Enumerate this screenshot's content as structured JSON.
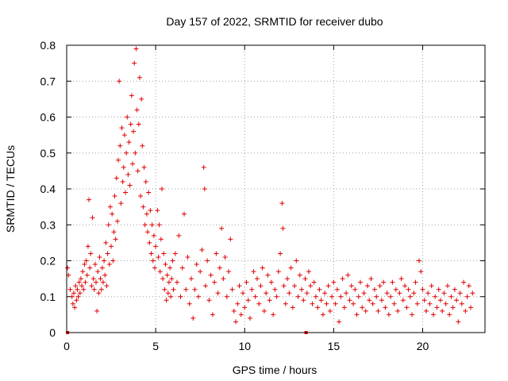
{
  "chart_data": {
    "type": "scatter",
    "title": "Day 157 of 2022, SRMTID for receiver dubo",
    "xlabel": "GPS time / hours",
    "ylabel": "SRMTID / TECUs",
    "xlim": [
      0,
      23.5
    ],
    "ylim": [
      0,
      0.8
    ],
    "xticks": [
      0,
      5,
      10,
      15,
      20
    ],
    "yticks": [
      0,
      0.1,
      0.2,
      0.3,
      0.4,
      0.5,
      0.6,
      0.7,
      0.8
    ],
    "xtick_labels": [
      "0",
      "5",
      "10",
      "15",
      "20"
    ],
    "ytick_labels": [
      "0",
      "0.1",
      "0.2",
      "0.3",
      "0.4",
      "0.5",
      "0.6",
      "0.7",
      "0.8"
    ],
    "grid": true,
    "marker": "+",
    "color": "#e00000",
    "zero_markers_x": [
      0.05,
      13.45
    ],
    "series": [
      {
        "name": "SRMTID",
        "points": [
          [
            0.05,
            0.18
          ],
          [
            0.1,
            0.16
          ],
          [
            0.2,
            0.12
          ],
          [
            0.3,
            0.1
          ],
          [
            0.35,
            0.08
          ],
          [
            0.4,
            0.11
          ],
          [
            0.45,
            0.07
          ],
          [
            0.5,
            0.13
          ],
          [
            0.55,
            0.09
          ],
          [
            0.6,
            0.12
          ],
          [
            0.65,
            0.1
          ],
          [
            0.7,
            0.14
          ],
          [
            0.75,
            0.11
          ],
          [
            0.8,
            0.15
          ],
          [
            0.85,
            0.13
          ],
          [
            0.9,
            0.17
          ],
          [
            0.95,
            0.12
          ],
          [
            1.0,
            0.19
          ],
          [
            1.05,
            0.14
          ],
          [
            1.1,
            0.2
          ],
          [
            1.15,
            0.16
          ],
          [
            1.2,
            0.24
          ],
          [
            1.25,
            0.37
          ],
          [
            1.3,
            0.18
          ],
          [
            1.35,
            0.22
          ],
          [
            1.4,
            0.13
          ],
          [
            1.45,
            0.32
          ],
          [
            1.5,
            0.15
          ],
          [
            1.55,
            0.12
          ],
          [
            1.6,
            0.19
          ],
          [
            1.65,
            0.14
          ],
          [
            1.7,
            0.06
          ],
          [
            1.75,
            0.17
          ],
          [
            1.8,
            0.11
          ],
          [
            1.85,
            0.21
          ],
          [
            1.9,
            0.15
          ],
          [
            1.95,
            0.12
          ],
          [
            2.0,
            0.18
          ],
          [
            2.05,
            0.14
          ],
          [
            2.1,
            0.2
          ],
          [
            2.15,
            0.16
          ],
          [
            2.2,
            0.25
          ],
          [
            2.25,
            0.13
          ],
          [
            2.3,
            0.22
          ],
          [
            2.35,
            0.3
          ],
          [
            2.4,
            0.19
          ],
          [
            2.45,
            0.35
          ],
          [
            2.5,
            0.24
          ],
          [
            2.55,
            0.33
          ],
          [
            2.6,
            0.2
          ],
          [
            2.65,
            0.28
          ],
          [
            2.7,
            0.38
          ],
          [
            2.75,
            0.26
          ],
          [
            2.8,
            0.43
          ],
          [
            2.85,
            0.31
          ],
          [
            2.9,
            0.48
          ],
          [
            2.95,
            0.7
          ],
          [
            3.0,
            0.52
          ],
          [
            3.05,
            0.36
          ],
          [
            3.1,
            0.57
          ],
          [
            3.15,
            0.42
          ],
          [
            3.2,
            0.46
          ],
          [
            3.25,
            0.55
          ],
          [
            3.3,
            0.39
          ],
          [
            3.35,
            0.5
          ],
          [
            3.4,
            0.6
          ],
          [
            3.45,
            0.44
          ],
          [
            3.5,
            0.53
          ],
          [
            3.55,
            0.41
          ],
          [
            3.6,
            0.58
          ],
          [
            3.65,
            0.66
          ],
          [
            3.7,
            0.47
          ],
          [
            3.75,
            0.56
          ],
          [
            3.8,
            0.75
          ],
          [
            3.85,
            0.5
          ],
          [
            3.9,
            0.79
          ],
          [
            3.95,
            0.62
          ],
          [
            4.0,
            0.45
          ],
          [
            4.05,
            0.58
          ],
          [
            4.1,
            0.71
          ],
          [
            4.15,
            0.38
          ],
          [
            4.2,
            0.65
          ],
          [
            4.25,
            0.52
          ],
          [
            4.3,
            0.35
          ],
          [
            4.35,
            0.46
          ],
          [
            4.4,
            0.3
          ],
          [
            4.45,
            0.42
          ],
          [
            4.5,
            0.33
          ],
          [
            4.55,
            0.28
          ],
          [
            4.6,
            0.39
          ],
          [
            4.65,
            0.25
          ],
          [
            4.7,
            0.34
          ],
          [
            4.75,
            0.22
          ],
          [
            4.8,
            0.3
          ],
          [
            4.85,
            0.2
          ],
          [
            4.9,
            0.27
          ],
          [
            4.95,
            0.18
          ],
          [
            5.0,
            0.24
          ],
          [
            5.1,
            0.34
          ],
          [
            5.15,
            0.21
          ],
          [
            5.2,
            0.3
          ],
          [
            5.25,
            0.17
          ],
          [
            5.3,
            0.26
          ],
          [
            5.35,
            0.4
          ],
          [
            5.4,
            0.15
          ],
          [
            5.45,
            0.22
          ],
          [
            5.5,
            0.12
          ],
          [
            5.55,
            0.19
          ],
          [
            5.6,
            0.09
          ],
          [
            5.65,
            0.16
          ],
          [
            5.7,
            0.11
          ],
          [
            5.75,
            0.14
          ],
          [
            5.8,
            0.18
          ],
          [
            5.85,
            0.1
          ],
          [
            5.9,
            0.15
          ],
          [
            5.95,
            0.2
          ],
          [
            6.0,
            0.12
          ],
          [
            6.1,
            0.22
          ],
          [
            6.2,
            0.14
          ],
          [
            6.3,
            0.27
          ],
          [
            6.4,
            0.1
          ],
          [
            6.5,
            0.18
          ],
          [
            6.6,
            0.33
          ],
          [
            6.7,
            0.12
          ],
          [
            6.8,
            0.21
          ],
          [
            6.9,
            0.08
          ],
          [
            7.0,
            0.15
          ],
          [
            7.1,
            0.04
          ],
          [
            7.2,
            0.12
          ],
          [
            7.3,
            0.19
          ],
          [
            7.4,
            0.1
          ],
          [
            7.5,
            0.17
          ],
          [
            7.6,
            0.23
          ],
          [
            7.7,
            0.46
          ],
          [
            7.75,
            0.4
          ],
          [
            7.8,
            0.13
          ],
          [
            7.9,
            0.2
          ],
          [
            8.0,
            0.09
          ],
          [
            8.1,
            0.16
          ],
          [
            8.2,
            0.05
          ],
          [
            8.3,
            0.14
          ],
          [
            8.4,
            0.22
          ],
          [
            8.5,
            0.11
          ],
          [
            8.6,
            0.18
          ],
          [
            8.7,
            0.29
          ],
          [
            8.8,
            0.15
          ],
          [
            8.9,
            0.21
          ],
          [
            9.0,
            0.1
          ],
          [
            9.1,
            0.17
          ],
          [
            9.2,
            0.26
          ],
          [
            9.3,
            0.12
          ],
          [
            9.4,
            0.06
          ],
          [
            9.5,
            0.03
          ],
          [
            9.6,
            0.08
          ],
          [
            9.7,
            0.13
          ],
          [
            9.8,
            0.05
          ],
          [
            9.9,
            0.11
          ],
          [
            10.0,
            0.07
          ],
          [
            10.1,
            0.14
          ],
          [
            10.2,
            0.09
          ],
          [
            10.3,
            0.04
          ],
          [
            10.4,
            0.12
          ],
          [
            10.5,
            0.17
          ],
          [
            10.6,
            0.1
          ],
          [
            10.7,
            0.15
          ],
          [
            10.8,
            0.08
          ],
          [
            10.9,
            0.13
          ],
          [
            11.0,
            0.18
          ],
          [
            11.1,
            0.06
          ],
          [
            11.2,
            0.11
          ],
          [
            11.3,
            0.16
          ],
          [
            11.4,
            0.09
          ],
          [
            11.5,
            0.14
          ],
          [
            11.6,
            0.05
          ],
          [
            11.7,
            0.12
          ],
          [
            11.8,
            0.1
          ],
          [
            11.9,
            0.17
          ],
          [
            12.0,
            0.22
          ],
          [
            12.1,
            0.36
          ],
          [
            12.15,
            0.29
          ],
          [
            12.2,
            0.13
          ],
          [
            12.3,
            0.08
          ],
          [
            12.4,
            0.15
          ],
          [
            12.5,
            0.11
          ],
          [
            12.6,
            0.18
          ],
          [
            12.7,
            0.07
          ],
          [
            12.8,
            0.13
          ],
          [
            12.9,
            0.2
          ],
          [
            13.0,
            0.1
          ],
          [
            13.1,
            0.16
          ],
          [
            13.2,
            0.12
          ],
          [
            13.3,
            0.09
          ],
          [
            13.4,
            0.15
          ],
          [
            13.5,
            0.11
          ],
          [
            13.6,
            0.17
          ],
          [
            13.7,
            0.13
          ],
          [
            13.8,
            0.08
          ],
          [
            13.9,
            0.14
          ],
          [
            14.0,
            0.1
          ],
          [
            14.1,
            0.07
          ],
          [
            14.2,
            0.12
          ],
          [
            14.3,
            0.09
          ],
          [
            14.4,
            0.05
          ],
          [
            14.5,
            0.11
          ],
          [
            14.6,
            0.08
          ],
          [
            14.7,
            0.13
          ],
          [
            14.8,
            0.06
          ],
          [
            14.9,
            0.1
          ],
          [
            15.0,
            0.14
          ],
          [
            15.1,
            0.08
          ],
          [
            15.2,
            0.12
          ],
          [
            15.3,
            0.03
          ],
          [
            15.4,
            0.1
          ],
          [
            15.5,
            0.15
          ],
          [
            15.6,
            0.07
          ],
          [
            15.7,
            0.11
          ],
          [
            15.8,
            0.16
          ],
          [
            15.9,
            0.09
          ],
          [
            16.0,
            0.13
          ],
          [
            16.1,
            0.08
          ],
          [
            16.2,
            0.12
          ],
          [
            16.3,
            0.05
          ],
          [
            16.4,
            0.1
          ],
          [
            16.5,
            0.14
          ],
          [
            16.6,
            0.07
          ],
          [
            16.7,
            0.11
          ],
          [
            16.8,
            0.06
          ],
          [
            16.9,
            0.13
          ],
          [
            17.0,
            0.09
          ],
          [
            17.1,
            0.15
          ],
          [
            17.2,
            0.08
          ],
          [
            17.3,
            0.12
          ],
          [
            17.4,
            0.1
          ],
          [
            17.5,
            0.06
          ],
          [
            17.6,
            0.13
          ],
          [
            17.7,
            0.09
          ],
          [
            17.8,
            0.14
          ],
          [
            17.9,
            0.07
          ],
          [
            18.0,
            0.11
          ],
          [
            18.1,
            0.05
          ],
          [
            18.2,
            0.1
          ],
          [
            18.3,
            0.14
          ],
          [
            18.4,
            0.08
          ],
          [
            18.5,
            0.12
          ],
          [
            18.6,
            0.06
          ],
          [
            18.7,
            0.11
          ],
          [
            18.8,
            0.15
          ],
          [
            18.9,
            0.09
          ],
          [
            19.0,
            0.13
          ],
          [
            19.1,
            0.07
          ],
          [
            19.2,
            0.12
          ],
          [
            19.3,
            0.1
          ],
          [
            19.4,
            0.05
          ],
          [
            19.5,
            0.11
          ],
          [
            19.6,
            0.14
          ],
          [
            19.7,
            0.08
          ],
          [
            19.8,
            0.2
          ],
          [
            19.9,
            0.17
          ],
          [
            20.0,
            0.12
          ],
          [
            20.1,
            0.09
          ],
          [
            20.2,
            0.06
          ],
          [
            20.3,
            0.11
          ],
          [
            20.4,
            0.08
          ],
          [
            20.5,
            0.13
          ],
          [
            20.6,
            0.05
          ],
          [
            20.7,
            0.1
          ],
          [
            20.8,
            0.07
          ],
          [
            20.9,
            0.12
          ],
          [
            21.0,
            0.09
          ],
          [
            21.1,
            0.06
          ],
          [
            21.2,
            0.11
          ],
          [
            21.3,
            0.08
          ],
          [
            21.4,
            0.13
          ],
          [
            21.5,
            0.05
          ],
          [
            21.6,
            0.1
          ],
          [
            21.7,
            0.07
          ],
          [
            21.8,
            0.12
          ],
          [
            21.9,
            0.09
          ],
          [
            22.0,
            0.03
          ],
          [
            22.1,
            0.11
          ],
          [
            22.2,
            0.08
          ],
          [
            22.3,
            0.14
          ],
          [
            22.4,
            0.06
          ],
          [
            22.5,
            0.1
          ],
          [
            22.6,
            0.13
          ],
          [
            22.7,
            0.07
          ],
          [
            22.8,
            0.11
          ]
        ]
      }
    ]
  }
}
